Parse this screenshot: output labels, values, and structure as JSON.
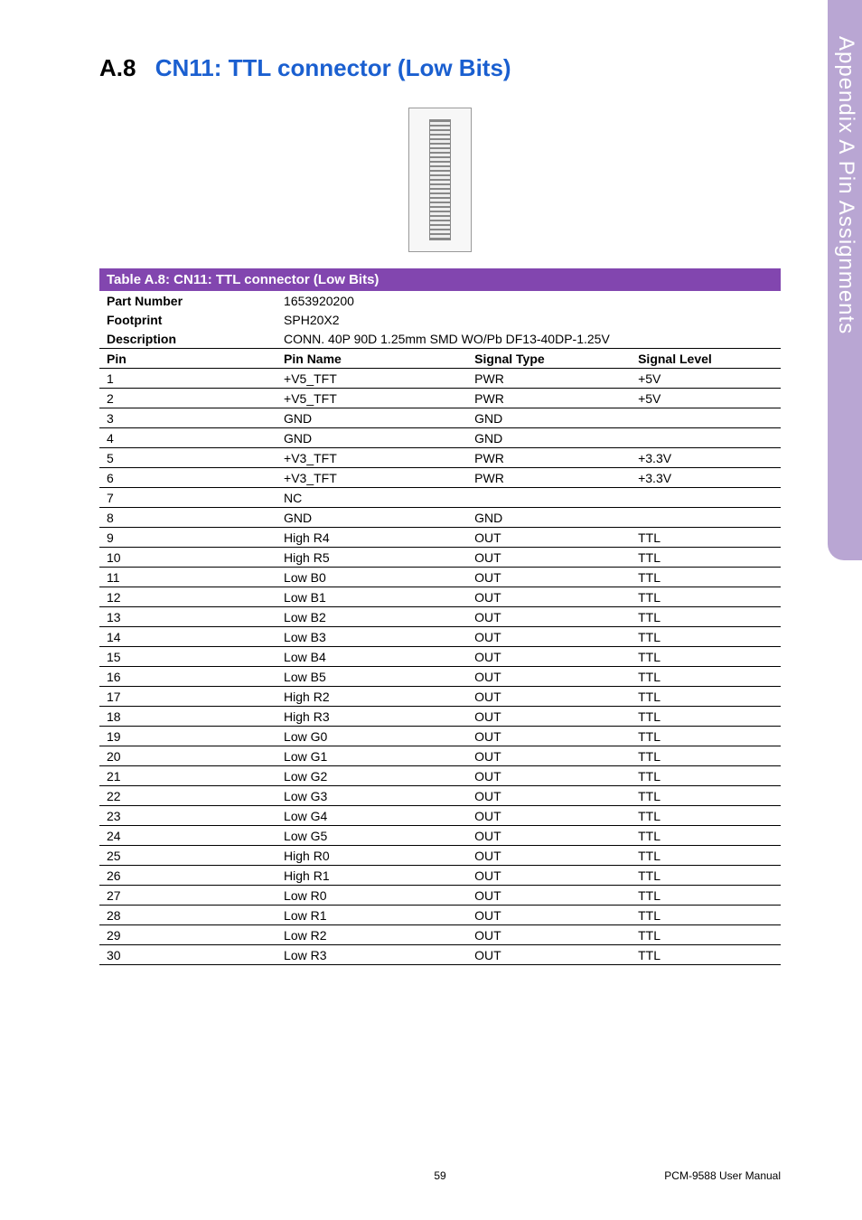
{
  "sidebar": {
    "text": "Appendix A   Pin Assignments"
  },
  "heading": {
    "number": "A.8",
    "title": "CN11: TTL connector (Low Bits)"
  },
  "table": {
    "caption": "Table A.8: CN11: TTL connector (Low Bits)",
    "meta": [
      {
        "label": "Part Number",
        "value": "1653920200"
      },
      {
        "label": "Footprint",
        "value": "SPH20X2"
      },
      {
        "label": "Description",
        "value": "CONN. 40P 90D 1.25mm SMD WO/Pb DF13-40DP-1.25V"
      }
    ],
    "columns": [
      "Pin",
      "Pin Name",
      "Signal Type",
      "Signal Level"
    ],
    "rows": [
      [
        "1",
        "+V5_TFT",
        "PWR",
        "+5V"
      ],
      [
        "2",
        "+V5_TFT",
        "PWR",
        "+5V"
      ],
      [
        "3",
        "GND",
        "GND",
        ""
      ],
      [
        "4",
        "GND",
        "GND",
        ""
      ],
      [
        "5",
        "+V3_TFT",
        "PWR",
        "+3.3V"
      ],
      [
        "6",
        "+V3_TFT",
        "PWR",
        "+3.3V"
      ],
      [
        "7",
        "NC",
        "",
        ""
      ],
      [
        "8",
        "GND",
        "GND",
        ""
      ],
      [
        "9",
        "High R4",
        "OUT",
        "TTL"
      ],
      [
        "10",
        "High R5",
        "OUT",
        "TTL"
      ],
      [
        "11",
        "Low B0",
        "OUT",
        "TTL"
      ],
      [
        "12",
        "Low B1",
        "OUT",
        "TTL"
      ],
      [
        "13",
        "Low B2",
        "OUT",
        "TTL"
      ],
      [
        "14",
        "Low B3",
        "OUT",
        "TTL"
      ],
      [
        "15",
        "Low B4",
        "OUT",
        "TTL"
      ],
      [
        "16",
        "Low B5",
        "OUT",
        "TTL"
      ],
      [
        "17",
        "High R2",
        "OUT",
        "TTL"
      ],
      [
        "18",
        "High R3",
        "OUT",
        "TTL"
      ],
      [
        "19",
        "Low G0",
        "OUT",
        "TTL"
      ],
      [
        "20",
        "Low G1",
        "OUT",
        "TTL"
      ],
      [
        "21",
        "Low G2",
        "OUT",
        "TTL"
      ],
      [
        "22",
        "Low G3",
        "OUT",
        "TTL"
      ],
      [
        "23",
        "Low G4",
        "OUT",
        "TTL"
      ],
      [
        "24",
        "Low G5",
        "OUT",
        "TTL"
      ],
      [
        "25",
        "High R0",
        "OUT",
        "TTL"
      ],
      [
        "26",
        "High R1",
        "OUT",
        "TTL"
      ],
      [
        "27",
        "Low R0",
        "OUT",
        "TTL"
      ],
      [
        "28",
        "Low R1",
        "OUT",
        "TTL"
      ],
      [
        "29",
        "Low R2",
        "OUT",
        "TTL"
      ],
      [
        "30",
        "Low R3",
        "OUT",
        "TTL"
      ]
    ]
  },
  "footer": {
    "page": "59",
    "doc": "PCM-9588 User Manual"
  },
  "colors": {
    "accent_purple": "#8246af",
    "heading_blue": "#1a5fd0",
    "sidebar_lavender": "#b9a6d3"
  }
}
